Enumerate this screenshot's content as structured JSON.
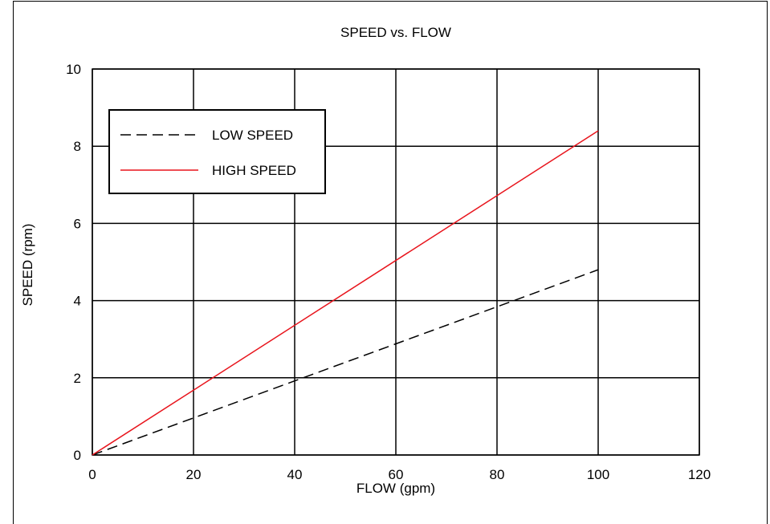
{
  "chart_data": {
    "type": "line",
    "title": "SPEED vs. FLOW",
    "xlabel": "FLOW (gpm)",
    "ylabel": "SPEED (rpm)",
    "xlim": [
      0,
      120
    ],
    "ylim": [
      0,
      10
    ],
    "xticks": [
      0,
      20,
      40,
      60,
      80,
      100,
      120
    ],
    "yticks": [
      0,
      2,
      4,
      6,
      8,
      10
    ],
    "grid": true,
    "legend_position": "top-left",
    "series": [
      {
        "name": "LOW SPEED",
        "x": [
          0,
          100
        ],
        "y": [
          0,
          4.8
        ],
        "color": "#000000",
        "style": "dashed"
      },
      {
        "name": "HIGH SPEED",
        "x": [
          0,
          100
        ],
        "y": [
          0,
          8.4
        ],
        "color": "#e8141c",
        "style": "solid"
      }
    ]
  }
}
